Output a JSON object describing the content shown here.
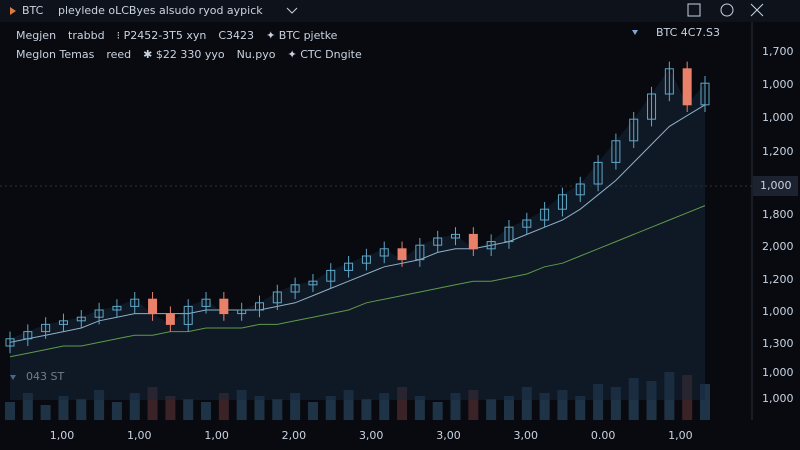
{
  "toolbar": {
    "symbol": "BTC",
    "title": "pleylede oLCByes alsudo ryod aypick"
  },
  "legend": [
    [
      {
        "text": "Megjen",
        "color": "#7fa6d6"
      },
      {
        "text": "trabbd",
        "color": "#c9d3e0"
      },
      {
        "text": "⁝ P2452-3T5 xyn",
        "color": "#e07a5a"
      },
      {
        "text": "C3423",
        "color": "#7fc06a"
      },
      {
        "text": "✦ BTC pjetke",
        "color": "#c9d3e0"
      }
    ],
    [
      {
        "text": "Meglon Temas",
        "color": "#7fa6d6"
      },
      {
        "text": "reed",
        "color": "#c9d3e0"
      },
      {
        "text": "✱ $22 330 yyo",
        "color": "#e07a5a"
      },
      {
        "text": "Nu.pyo",
        "color": "#c9c26a"
      },
      {
        "text": "✦ CTC Dngite",
        "color": "#7fc06a"
      }
    ]
  ],
  "price_tag": "BTC 4C7.S3",
  "crosshair_label": "1,000",
  "volume_label": "043 ST",
  "y_labels": [
    "1,700",
    "1,000",
    "1,000",
    "1,200",
    "1,800",
    "2,000",
    "1,200",
    "1,000",
    "1,300",
    "1,000",
    "1,000"
  ],
  "x_labels": [
    "1,00",
    "1,00",
    "1,00",
    "2,00",
    "3,00",
    "3,00",
    "3,00",
    "0.00",
    "1,00"
  ],
  "chart_data": {
    "type": "candlestick",
    "ylim": [
      0,
      100
    ],
    "vlim": [
      0,
      100
    ],
    "up_color": "#5fa8c8",
    "down_color": "#e8806a",
    "open": [
      15,
      17,
      19,
      21,
      22,
      23,
      25,
      26,
      28,
      24,
      21,
      26,
      28,
      24,
      25,
      27,
      30,
      32,
      33,
      36,
      38,
      40,
      42,
      39,
      43,
      45,
      46,
      42,
      44,
      48,
      50,
      53,
      57,
      60,
      66,
      72,
      78,
      85,
      92,
      82
    ],
    "high": [
      19,
      21,
      23,
      24,
      25,
      27,
      28,
      30,
      30,
      26,
      28,
      30,
      30,
      27,
      29,
      32,
      34,
      35,
      38,
      40,
      42,
      44,
      44,
      45,
      47,
      48,
      48,
      46,
      50,
      52,
      55,
      59,
      62,
      68,
      74,
      80,
      87,
      94,
      94,
      90
    ],
    "low": [
      13,
      15,
      17,
      19,
      20,
      21,
      23,
      24,
      22,
      19,
      19,
      24,
      22,
      22,
      23,
      25,
      28,
      30,
      31,
      34,
      36,
      38,
      37,
      37,
      41,
      43,
      40,
      40,
      42,
      46,
      48,
      51,
      55,
      58,
      64,
      70,
      76,
      83,
      80,
      80
    ],
    "close": [
      17,
      19,
      21,
      22,
      23,
      25,
      26,
      28,
      24,
      21,
      26,
      28,
      24,
      25,
      27,
      30,
      32,
      33,
      36,
      38,
      40,
      42,
      39,
      43,
      45,
      46,
      42,
      44,
      48,
      50,
      53,
      57,
      60,
      66,
      72,
      78,
      85,
      92,
      82,
      88
    ],
    "volume": [
      30,
      45,
      25,
      40,
      35,
      50,
      30,
      45,
      55,
      40,
      35,
      30,
      45,
      50,
      40,
      35,
      45,
      30,
      40,
      50,
      35,
      45,
      55,
      40,
      30,
      45,
      50,
      35,
      40,
      55,
      45,
      50,
      40,
      60,
      55,
      70,
      65,
      80,
      75,
      60
    ],
    "lines": [
      {
        "color": "#8fb0c8",
        "values": [
          16,
          17,
          18,
          19,
          20,
          22,
          23,
          24,
          24,
          24,
          24,
          25,
          25,
          25,
          25,
          26,
          27,
          29,
          31,
          33,
          35,
          37,
          38,
          39,
          41,
          42,
          42,
          43,
          44,
          46,
          48,
          50,
          53,
          57,
          61,
          66,
          71,
          76,
          79,
          82
        ]
      },
      {
        "color": "#5f9a4a",
        "values": [
          12,
          13,
          14,
          15,
          15,
          16,
          17,
          18,
          18,
          19,
          19,
          20,
          20,
          20,
          21,
          21,
          22,
          23,
          24,
          25,
          27,
          28,
          29,
          30,
          31,
          32,
          33,
          33,
          34,
          35,
          37,
          38,
          40,
          42,
          44,
          46,
          48,
          50,
          52,
          54
        ]
      }
    ]
  }
}
